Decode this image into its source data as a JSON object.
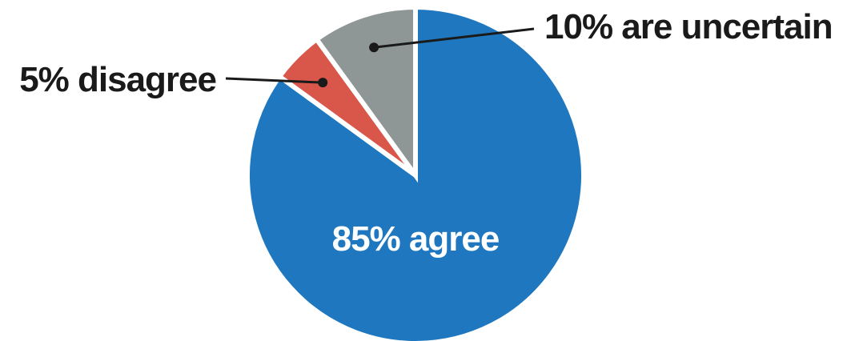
{
  "chart_data": {
    "type": "pie",
    "slices": [
      {
        "label": "85% agree",
        "value": 85,
        "color": "#1f78bf"
      },
      {
        "label": "5% disagree",
        "value": 5,
        "color": "#d9564b"
      },
      {
        "label": "10% are uncertain",
        "value": 10,
        "color": "#8e9696"
      }
    ]
  }
}
